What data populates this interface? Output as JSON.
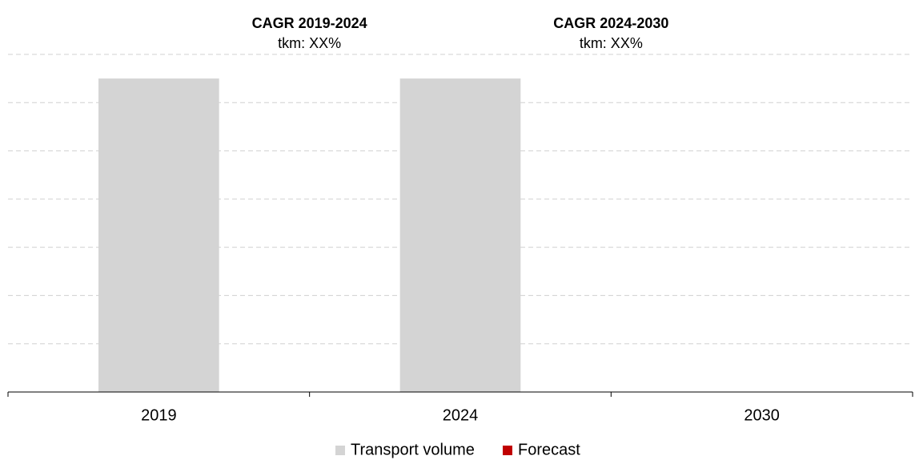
{
  "chart_data": {
    "type": "bar",
    "categories": [
      "2019",
      "2024",
      "2030"
    ],
    "series": [
      {
        "name": "Transport volume",
        "color": "#d4d4d4",
        "values": [
          6.5,
          6.5,
          null
        ]
      },
      {
        "name": "Forecast",
        "color": "#c00000",
        "values": [
          null,
          null,
          null
        ]
      }
    ],
    "annotations": [
      {
        "title": "CAGR 2019-2024",
        "text": "tkm: XX%"
      },
      {
        "title": "CAGR 2024-2030",
        "text": "tkm: XX%"
      }
    ],
    "ylim": [
      0,
      7
    ],
    "yticks": [
      1,
      2,
      3,
      4,
      5,
      6,
      7
    ],
    "grid": true,
    "legend": "bottom"
  }
}
